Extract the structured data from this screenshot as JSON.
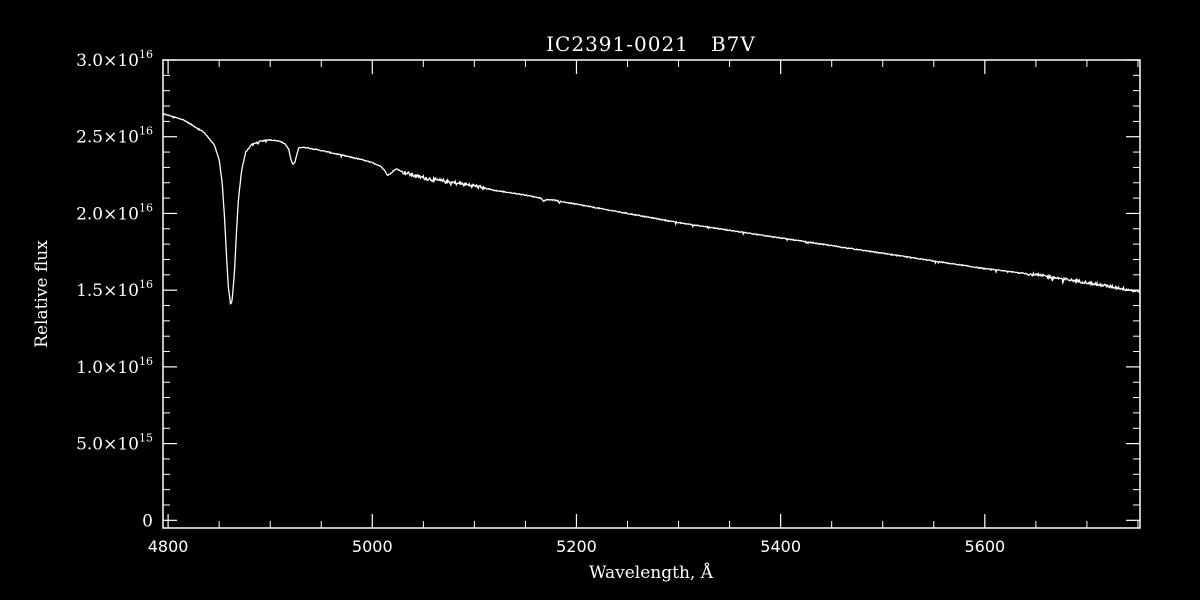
{
  "chart_data": {
    "type": "line",
    "title": "IC2391-0021   B7V",
    "xlabel": "Wavelength, Å",
    "ylabel": "Relative flux",
    "xlim": [
      4795,
      5752
    ],
    "ylim": [
      -500000000000000.0,
      3e+16
    ],
    "x_ticks": [
      {
        "value": 4800,
        "label": "4800"
      },
      {
        "value": 5000,
        "label": "5000"
      },
      {
        "value": 5200,
        "label": "5200"
      },
      {
        "value": 5400,
        "label": "5400"
      },
      {
        "value": 5600,
        "label": "5600"
      }
    ],
    "y_ticks": [
      {
        "value": 0,
        "mantissa": "0",
        "exponent": ""
      },
      {
        "value": 5000000000000000.0,
        "mantissa": "5.0×10",
        "exponent": "15"
      },
      {
        "value": 1e+16,
        "mantissa": "1.0×10",
        "exponent": "16"
      },
      {
        "value": 1.5e+16,
        "mantissa": "1.5×10",
        "exponent": "16"
      },
      {
        "value": 2e+16,
        "mantissa": "2.0×10",
        "exponent": "16"
      },
      {
        "value": 2.5e+16,
        "mantissa": "2.5×10",
        "exponent": "16"
      },
      {
        "value": 3e+16,
        "mantissa": "3.0×10",
        "exponent": "16"
      }
    ],
    "grid": false,
    "line_color": "#ffffff",
    "background": "#000000",
    "series": [
      {
        "x": [
          4795,
          4805,
          4815,
          4825,
          4835,
          4845,
          4850,
          4853,
          4855,
          4857,
          4859,
          4861,
          4862,
          4863,
          4865,
          4867,
          4869,
          4872,
          4876,
          4882,
          4890,
          4900,
          4910,
          4915,
          4918,
          4920,
          4922,
          4924,
          4926,
          4928,
          4935,
          4950,
          4970,
          4990,
          5000,
          5008,
          5012,
          5015,
          5018,
          5021,
          5024,
          5030,
          5045,
          5060,
          5080,
          5100,
          5120,
          5150,
          5165,
          5168,
          5171,
          5175,
          5200,
          5250,
          5300,
          5350,
          5400,
          5450,
          5500,
          5550,
          5600,
          5650,
          5700,
          5752
        ],
        "y": [
          2.65e+16,
          2.63e+16,
          2.61e+16,
          2.57e+16,
          2.53e+16,
          2.45e+16,
          2.35e+16,
          2.2e+16,
          2e+16,
          1.75e+16,
          1.52e+16,
          1.42e+16,
          1.41e+16,
          1.45e+16,
          1.62e+16,
          1.88e+16,
          2.1e+16,
          2.28e+16,
          2.4e+16,
          2.45e+16,
          2.47e+16,
          2.48e+16,
          2.47e+16,
          2.45e+16,
          2.42e+16,
          2.36e+16,
          2.32e+16,
          2.33e+16,
          2.38e+16,
          2.43e+16,
          2.43e+16,
          2.41e+16,
          2.38e+16,
          2.35e+16,
          2.33e+16,
          2.31e+16,
          2.28e+16,
          2.25e+16,
          2.26e+16,
          2.28e+16,
          2.29e+16,
          2.27e+16,
          2.24e+16,
          2.22e+16,
          2.2e+16,
          2.18e+16,
          2.15e+16,
          2.12e+16,
          2.1e+16,
          2.08e+16,
          2.09e+16,
          2.09e+16,
          2.06e+16,
          2e+16,
          1.94e+16,
          1.89e+16,
          1.84e+16,
          1.79e+16,
          1.74e+16,
          1.69e+16,
          1.64e+16,
          1.6e+16,
          1.55e+16,
          1.49e+16
        ]
      }
    ]
  }
}
